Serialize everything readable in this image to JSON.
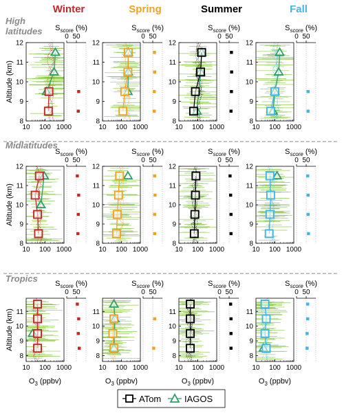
{
  "chart_data": {
    "type": "line",
    "seasons": [
      {
        "label": "Winter",
        "color": "#c0282a"
      },
      {
        "label": "Spring",
        "color": "#f0a321"
      },
      {
        "label": "Summer",
        "color": "#000000"
      },
      {
        "label": "Fall",
        "color": "#3fb6e3"
      }
    ],
    "regions": [
      {
        "label": "High latitudes",
        "lines": [
          "High",
          "latitudes"
        ],
        "ylim": [
          8,
          12
        ],
        "yticks": [
          8,
          9,
          10,
          11,
          12
        ]
      },
      {
        "label": "Midlatitudes",
        "lines": [
          "Midlatitudes"
        ],
        "ylim": [
          8,
          12
        ],
        "yticks": [
          8,
          9,
          10,
          11,
          12
        ]
      },
      {
        "label": "Tropics",
        "lines": [
          "Tropics"
        ],
        "ylim": [
          7.6,
          11.9
        ],
        "yticks": [
          8,
          9,
          10,
          11
        ]
      }
    ],
    "ylabel": "Altitude (km)",
    "xlabel_main": "O",
    "xlabel_sub": "3",
    "xlabel_unit": " (ppbv)",
    "x_scale": "log",
    "xlim": [
      10,
      1000
    ],
    "xticks": [
      10,
      100,
      1000
    ],
    "xtick_labels": [
      "10",
      "100",
      "1000"
    ],
    "score_label_main": "S",
    "score_label_sub": "score",
    "score_label_unit": " (%)",
    "score_xlim": [
      0,
      100
    ],
    "score_ticks": [
      0,
      50
    ],
    "score_tick_labels": [
      "0",
      "50"
    ],
    "altitudes": [
      8.5,
      9.5,
      10.5,
      11.5
    ],
    "panels": [
      {
        "region": 0,
        "season": 0,
        "atom_alt": [
          8.5,
          9.5
        ],
        "atom_o3": [
          150,
          160
        ],
        "iagos_alt": [
          9.5,
          10.5,
          11.5
        ],
        "iagos_o3": [
          120,
          300,
          350
        ],
        "score_alt": [
          8.5,
          9.5
        ],
        "score": [
          60,
          62
        ]
      },
      {
        "region": 0,
        "season": 1,
        "atom_alt": [
          8.5,
          9.5,
          10.5,
          11.5
        ],
        "atom_o3": [
          120,
          150,
          220,
          230
        ],
        "iagos_alt": [
          9.5,
          10.5,
          11.5
        ],
        "iagos_o3": [
          220,
          230,
          230
        ],
        "score_alt": [
          8.5,
          9.5,
          10.5,
          11.5
        ],
        "score": [
          58,
          58,
          60,
          59
        ]
      },
      {
        "region": 0,
        "season": 2,
        "atom_alt": [
          8.5,
          9.5,
          10.5,
          11.5
        ],
        "atom_o3": [
          60,
          75,
          140,
          160
        ],
        "iagos_alt": [
          8.5,
          10.5,
          11.5
        ],
        "iagos_o3": [
          90,
          140,
          160
        ],
        "score_alt": [
          8.5,
          9.5,
          10.5,
          11.5
        ],
        "score": [
          60,
          62,
          63,
          62
        ]
      },
      {
        "region": 0,
        "season": 3,
        "atom_alt": [
          8.5,
          9.5
        ],
        "atom_o3": [
          60,
          100
        ],
        "iagos_alt": [
          8.5,
          9.5,
          10.5,
          11.5
        ],
        "iagos_o3": [
          80,
          100,
          160,
          180
        ],
        "score_alt": [
          8.5,
          9.5
        ],
        "score": [
          60,
          60
        ]
      },
      {
        "region": 1,
        "season": 0,
        "atom_alt": [
          8.5,
          9.5,
          10.5,
          11.5
        ],
        "atom_o3": [
          45,
          40,
          30,
          50
        ],
        "iagos_alt": [
          10.0,
          11.5
        ],
        "iagos_o3": [
          60,
          90
        ],
        "score_alt": [
          8.5,
          9.5,
          10.5,
          11.5
        ],
        "score": [
          58,
          60,
          62,
          55
        ]
      },
      {
        "region": 1,
        "season": 1,
        "atom_alt": [
          8.5,
          9.5,
          10.5,
          11.5
        ],
        "atom_o3": [
          55,
          60,
          70,
          80
        ],
        "iagos_alt": [
          11.5
        ],
        "iagos_o3": [
          220
        ],
        "score_alt": [
          8.5,
          9.5,
          10.5,
          11.5
        ],
        "score": [
          60,
          60,
          62,
          60
        ]
      },
      {
        "region": 1,
        "season": 2,
        "atom_alt": [
          8.5,
          9.5,
          10.5,
          11.5
        ],
        "atom_o3": [
          65,
          70,
          75,
          80
        ],
        "iagos_alt": [],
        "iagos_o3": [],
        "score_alt": [
          8.5,
          9.5,
          10.5,
          11.5
        ],
        "score": [
          60,
          60,
          58,
          55
        ]
      },
      {
        "region": 1,
        "season": 3,
        "atom_alt": [
          8.5,
          9.5,
          10.5,
          11.5
        ],
        "atom_o3": [
          50,
          55,
          60,
          55
        ],
        "iagos_alt": [
          11.5
        ],
        "iagos_o3": [
          130
        ],
        "score_alt": [
          8.5,
          9.5,
          10.5,
          11.5
        ],
        "score": [
          62,
          60,
          60,
          58
        ]
      },
      {
        "region": 2,
        "season": 0,
        "atom_alt": [
          8.5,
          9.5,
          10.5,
          11.5
        ],
        "atom_o3": [
          40,
          40,
          40,
          40
        ],
        "iagos_alt": [
          9.5
        ],
        "iagos_o3": [
          22
        ],
        "score_alt": [
          8.5,
          9.5,
          10.5,
          11.5
        ],
        "score": [
          65,
          60,
          62,
          55
        ]
      },
      {
        "region": 2,
        "season": 1,
        "atom_alt": [
          8.5,
          9.5,
          10.5
        ],
        "atom_o3": [
          40,
          35,
          40
        ],
        "iagos_alt": [
          8.5,
          10.5,
          11.5
        ],
        "iagos_o3": [
          40,
          45,
          40
        ],
        "score_alt": [
          8.5,
          10.5
        ],
        "score": [
          55,
          60
        ]
      },
      {
        "region": 2,
        "season": 2,
        "atom_alt": [
          8.5,
          9.5,
          10.5,
          11.5
        ],
        "atom_o3": [
          40,
          40,
          40,
          40
        ],
        "iagos_alt": [],
        "iagos_o3": [],
        "score_alt": [
          8.5,
          9.5,
          10.5,
          11.5
        ],
        "score": [
          60,
          60,
          60,
          58
        ]
      },
      {
        "region": 2,
        "season": 3,
        "atom_alt": [
          8.5,
          9.5,
          10.5,
          11.5
        ],
        "atom_o3": [
          35,
          30,
          35,
          30
        ],
        "iagos_alt": [
          8.5
        ],
        "iagos_o3": [
          25
        ],
        "score_alt": [
          8.5,
          9.5,
          10.5,
          11.5
        ],
        "score": [
          55,
          55,
          58,
          58
        ]
      }
    ],
    "legend": [
      {
        "label": "ATom",
        "marker": "square"
      },
      {
        "label": "IAGOS",
        "marker": "triangle"
      }
    ],
    "legend_position": "bottom-center",
    "grid": false
  },
  "colors": {
    "iagos_green": "#2e9e6a",
    "raw_green": "#7ec234",
    "score_grid": "#bbbbbb",
    "region_label": "#8a8a8a",
    "separator": "#888888"
  }
}
